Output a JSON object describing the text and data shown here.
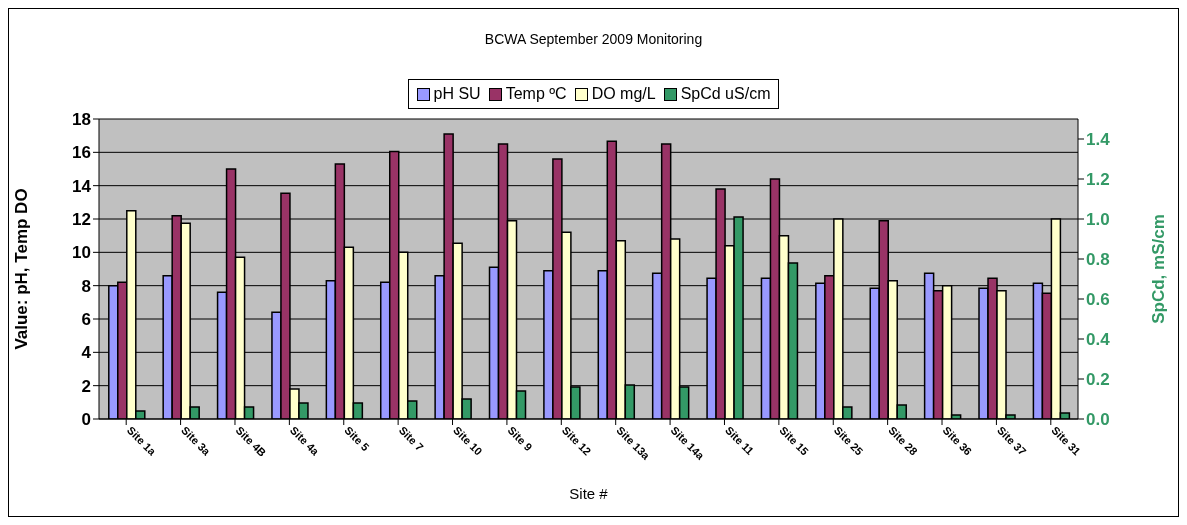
{
  "chart_data": {
    "type": "bar",
    "title": "BCWA September 2009 Monitoring",
    "xlabel": "Site #",
    "ylabel": "Value: pH, Temp DO",
    "y2label": "SpCd, mS/cm",
    "categories": [
      "Site 1a",
      "Site 3a",
      "Site 4B",
      "Site 4a",
      "Site 5",
      "Site 7",
      "Site 10",
      "Site 9",
      "Site 12",
      "Site 13a",
      "Site 14a",
      "Site 11",
      "Site 15",
      "Site 25",
      "Site 28",
      "Site 36",
      "Site 37",
      "Site 31"
    ],
    "series": [
      {
        "name": "pH SU",
        "color": "#9999ff",
        "values": [
          8.0,
          8.6,
          7.6,
          6.4,
          8.3,
          8.2,
          8.6,
          9.1,
          8.9,
          8.9,
          8.75,
          8.45,
          8.45,
          8.15,
          7.85,
          8.75,
          7.85,
          8.15
        ]
      },
      {
        "name": "Temp ºC",
        "color": "#993366",
        "values": [
          8.2,
          12.2,
          15.0,
          13.55,
          15.3,
          16.05,
          17.1,
          16.5,
          15.6,
          16.67,
          16.5,
          13.8,
          14.4,
          8.6,
          11.9,
          7.7,
          8.45,
          7.55
        ]
      },
      {
        "name": "DO mg/L",
        "color": "#ffffcc",
        "values": [
          12.5,
          11.75,
          9.7,
          1.8,
          10.3,
          10.0,
          10.55,
          11.9,
          11.2,
          10.7,
          10.8,
          10.4,
          11.0,
          12.0,
          8.3,
          8.0,
          7.7,
          12.0
        ]
      },
      {
        "name": "SpCd uS/cm",
        "color": "#339966",
        "axis": "y2",
        "values": [
          0.04,
          0.06,
          0.06,
          0.08,
          0.08,
          0.09,
          0.1,
          0.14,
          0.16,
          0.17,
          0.16,
          1.01,
          0.78,
          0.06,
          0.07,
          0.02,
          0.02,
          0.03
        ]
      }
    ],
    "ylim": [
      0,
      18
    ],
    "yticks": [
      0,
      2,
      4,
      6,
      8,
      10,
      12,
      14,
      16,
      18
    ],
    "y2lim": [
      0,
      1.5
    ],
    "y2ticks": [
      {
        "value": 0,
        "label": "0.0"
      },
      {
        "value": 0.2,
        "label": "0.2"
      },
      {
        "value": 0.4,
        "label": "0.4"
      },
      {
        "value": 0.6,
        "label": "0.6"
      },
      {
        "value": 0.8,
        "label": "0.8"
      },
      {
        "value": 1,
        "label": "1.0"
      },
      {
        "value": 1.2,
        "label": "1.2"
      },
      {
        "value": 1.4,
        "label": "1.4"
      }
    ],
    "grid": "y",
    "legend": "top"
  }
}
